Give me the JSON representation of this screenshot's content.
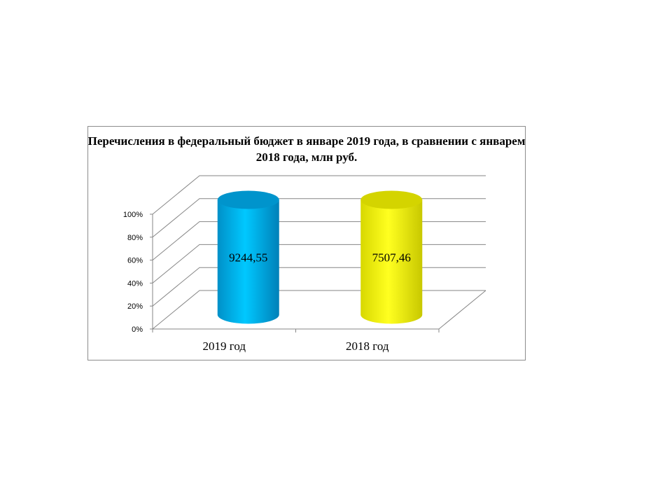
{
  "chart_data": {
    "type": "bar",
    "subtype": "3d-cylinder-100%-stacked",
    "title": "Перечисления в федеральный бюджет  в январе 2019 года, в сравнении с январем 2018 года, млн руб.",
    "categories": [
      "2019 год",
      "2018 год"
    ],
    "values": [
      9244.55,
      7507.46
    ],
    "data_labels": [
      "9244,55",
      "7507,46"
    ],
    "colors": [
      "#00aeef",
      "#ffff00"
    ],
    "ylim": [
      0,
      100
    ],
    "y_ticks": [
      "0%",
      "20%",
      "40%",
      "60%",
      "80%",
      "100%"
    ],
    "grid": true,
    "xlabel": "",
    "ylabel": ""
  }
}
